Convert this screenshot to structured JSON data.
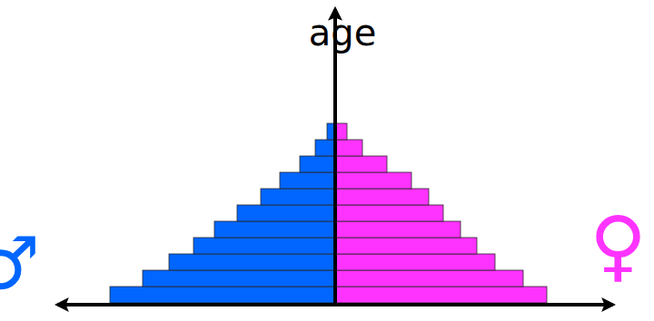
{
  "chart_data": {
    "type": "population_pyramid",
    "orientation": "horizontal",
    "ylabel": "age",
    "categories": [
      null,
      null,
      null,
      null,
      null,
      null,
      null,
      null,
      null,
      null,
      null
    ],
    "series": [
      {
        "name": "♂",
        "color": "#0066ff",
        "values": [
          248,
          212,
          183,
          156,
          133,
          108,
          82,
          61,
          39,
          22,
          9
        ]
      },
      {
        "name": "♀",
        "color": "#ff33ff",
        "values": [
          233,
          207,
          176,
          156,
          138,
          119,
          103,
          84,
          57,
          30,
          13
        ]
      }
    ],
    "xlim": [
      -310,
      310
    ],
    "xticks": [],
    "tick_labels": false
  }
}
